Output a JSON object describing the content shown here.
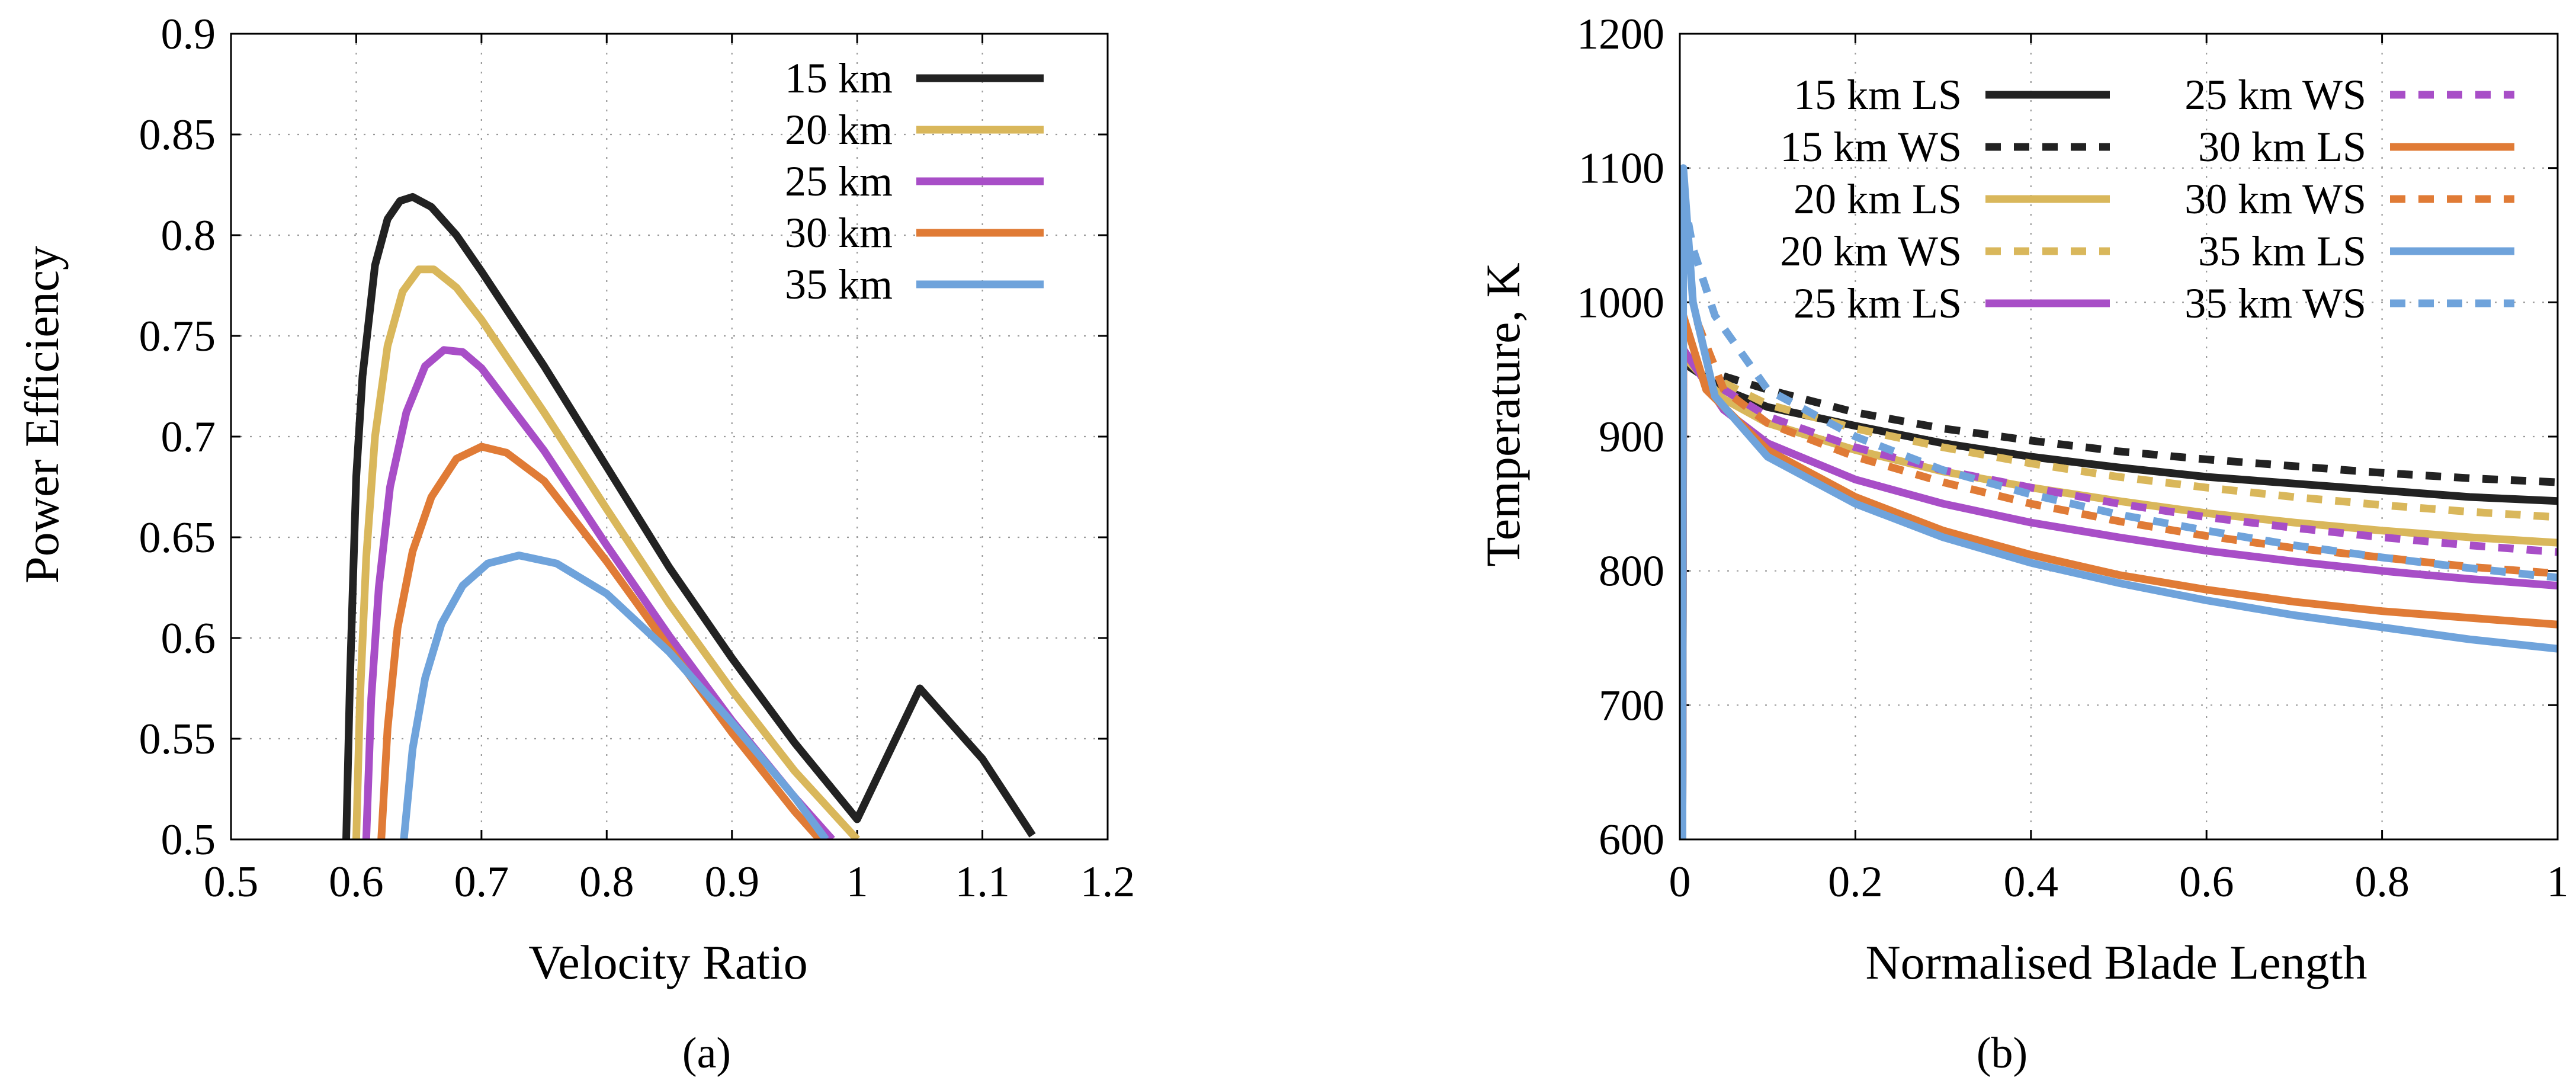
{
  "chart_data": [
    {
      "panel": "(a)",
      "type": "line",
      "xlabel": "Velocity Ratio",
      "ylabel": "Power Efficiency",
      "xlim": [
        0.5,
        1.2
      ],
      "ylim": [
        0.5,
        0.9
      ],
      "xticks": [
        "0.5",
        "0.6",
        "0.7",
        "0.8",
        "0.9",
        "1",
        "1.1",
        "1.2"
      ],
      "yticks": [
        "0.5",
        "0.55",
        "0.6",
        "0.65",
        "0.7",
        "0.75",
        "0.8",
        "0.85",
        "0.9"
      ],
      "legend_position": "top-right",
      "grid": true,
      "series": [
        {
          "name": "15 km",
          "color": "#222222",
          "dash": "solid",
          "points": [
            [
              0.592,
              0.5
            ],
            [
              0.595,
              0.58
            ],
            [
              0.6,
              0.68
            ],
            [
              0.605,
              0.73
            ],
            [
              0.615,
              0.785
            ],
            [
              0.625,
              0.808
            ],
            [
              0.635,
              0.817
            ],
            [
              0.645,
              0.819
            ],
            [
              0.66,
              0.814
            ],
            [
              0.68,
              0.8
            ],
            [
              0.7,
              0.782
            ],
            [
              0.75,
              0.735
            ],
            [
              0.8,
              0.685
            ],
            [
              0.85,
              0.635
            ],
            [
              0.9,
              0.59
            ],
            [
              0.95,
              0.548
            ],
            [
              1.0,
              0.51
            ],
            [
              1.05,
              0.575
            ],
            [
              1.1,
              0.54
            ],
            [
              1.14,
              0.502
            ]
          ]
        },
        {
          "name": "20 km",
          "color": "#D9B75B",
          "dash": "solid",
          "points": [
            [
              0.6,
              0.5
            ],
            [
              0.603,
              0.57
            ],
            [
              0.608,
              0.64
            ],
            [
              0.615,
              0.7
            ],
            [
              0.625,
              0.745
            ],
            [
              0.637,
              0.772
            ],
            [
              0.65,
              0.783
            ],
            [
              0.662,
              0.783
            ],
            [
              0.68,
              0.774
            ],
            [
              0.7,
              0.758
            ],
            [
              0.75,
              0.712
            ],
            [
              0.8,
              0.664
            ],
            [
              0.85,
              0.617
            ],
            [
              0.9,
              0.574
            ],
            [
              0.95,
              0.534
            ],
            [
              1.0,
              0.5
            ]
          ]
        },
        {
          "name": "25 km",
          "color": "#A84EC7",
          "dash": "solid",
          "points": [
            [
              0.608,
              0.5
            ],
            [
              0.612,
              0.57
            ],
            [
              0.618,
              0.625
            ],
            [
              0.627,
              0.675
            ],
            [
              0.64,
              0.712
            ],
            [
              0.655,
              0.735
            ],
            [
              0.67,
              0.743
            ],
            [
              0.685,
              0.742
            ],
            [
              0.7,
              0.734
            ],
            [
              0.75,
              0.693
            ],
            [
              0.8,
              0.646
            ],
            [
              0.85,
              0.601
            ],
            [
              0.9,
              0.559
            ],
            [
              0.95,
              0.521
            ],
            [
              0.98,
              0.5
            ]
          ]
        },
        {
          "name": "30 km",
          "color": "#E07B36",
          "dash": "solid",
          "points": [
            [
              0.62,
              0.5
            ],
            [
              0.625,
              0.555
            ],
            [
              0.633,
              0.605
            ],
            [
              0.645,
              0.643
            ],
            [
              0.66,
              0.67
            ],
            [
              0.68,
              0.689
            ],
            [
              0.7,
              0.695
            ],
            [
              0.72,
              0.692
            ],
            [
              0.75,
              0.678
            ],
            [
              0.8,
              0.638
            ],
            [
              0.85,
              0.595
            ],
            [
              0.9,
              0.553
            ],
            [
              0.95,
              0.514
            ],
            [
              0.97,
              0.5
            ]
          ]
        },
        {
          "name": "35 km",
          "color": "#6FA3DB",
          "dash": "solid",
          "points": [
            [
              0.638,
              0.5
            ],
            [
              0.645,
              0.545
            ],
            [
              0.655,
              0.58
            ],
            [
              0.668,
              0.607
            ],
            [
              0.685,
              0.626
            ],
            [
              0.705,
              0.637
            ],
            [
              0.73,
              0.641
            ],
            [
              0.76,
              0.637
            ],
            [
              0.8,
              0.622
            ],
            [
              0.85,
              0.593
            ],
            [
              0.9,
              0.558
            ],
            [
              0.95,
              0.521
            ],
            [
              0.975,
              0.5
            ]
          ]
        }
      ]
    },
    {
      "panel": "(b)",
      "type": "line",
      "xlabel": "Normalised Blade Length",
      "ylabel": "Temperature, K",
      "xlim": [
        0,
        1
      ],
      "ylim": [
        600,
        1200
      ],
      "xticks": [
        "0",
        "0.2",
        "0.4",
        "0.6",
        "0.8",
        "1"
      ],
      "yticks": [
        "600",
        "700",
        "800",
        "900",
        "1000",
        "1100",
        "1200"
      ],
      "legend_position": "top",
      "grid": true,
      "series": [
        {
          "name": "15 km LS",
          "color": "#222222",
          "dash": "solid",
          "points": [
            [
              0.003,
              600
            ],
            [
              0.004,
              955
            ],
            [
              0.05,
              935
            ],
            [
              0.1,
              922
            ],
            [
              0.2,
              908
            ],
            [
              0.3,
              895
            ],
            [
              0.4,
              885
            ],
            [
              0.5,
              877
            ],
            [
              0.6,
              870
            ],
            [
              0.7,
              865
            ],
            [
              0.8,
              860
            ],
            [
              0.9,
              855
            ],
            [
              1.0,
              852
            ]
          ]
        },
        {
          "name": "15 km WS",
          "color": "#222222",
          "dash": "dashed",
          "points": [
            [
              0.05,
              945
            ],
            [
              0.1,
              935
            ],
            [
              0.2,
              918
            ],
            [
              0.3,
              906
            ],
            [
              0.4,
              897
            ],
            [
              0.5,
              889
            ],
            [
              0.6,
              883
            ],
            [
              0.7,
              878
            ],
            [
              0.8,
              873
            ],
            [
              0.9,
              869
            ],
            [
              1.0,
              866
            ]
          ]
        },
        {
          "name": "20 km LS",
          "color": "#D9B75B",
          "dash": "solid",
          "points": [
            [
              0.003,
              600
            ],
            [
              0.004,
              960
            ],
            [
              0.05,
              928
            ],
            [
              0.1,
              910
            ],
            [
              0.2,
              890
            ],
            [
              0.3,
              874
            ],
            [
              0.4,
              862
            ],
            [
              0.5,
              852
            ],
            [
              0.6,
              843
            ],
            [
              0.7,
              836
            ],
            [
              0.8,
              830
            ],
            [
              0.9,
              825
            ],
            [
              1.0,
              821
            ]
          ]
        },
        {
          "name": "20 km WS",
          "color": "#D9B75B",
          "dash": "dashed",
          "points": [
            [
              0.05,
              940
            ],
            [
              0.1,
              924
            ],
            [
              0.2,
              906
            ],
            [
              0.3,
              892
            ],
            [
              0.4,
              880
            ],
            [
              0.5,
              870
            ],
            [
              0.6,
              862
            ],
            [
              0.7,
              855
            ],
            [
              0.8,
              849
            ],
            [
              0.9,
              844
            ],
            [
              1.0,
              840
            ]
          ]
        },
        {
          "name": "25 km LS",
          "color": "#A84EC7",
          "dash": "solid",
          "points": [
            [
              0.003,
              600
            ],
            [
              0.004,
              965
            ],
            [
              0.05,
              920
            ],
            [
              0.1,
              895
            ],
            [
              0.2,
              868
            ],
            [
              0.3,
              850
            ],
            [
              0.4,
              836
            ],
            [
              0.5,
              825
            ],
            [
              0.6,
              815
            ],
            [
              0.7,
              807
            ],
            [
              0.8,
              800
            ],
            [
              0.9,
              794
            ],
            [
              1.0,
              789
            ]
          ]
        },
        {
          "name": "25 km WS",
          "color": "#A84EC7",
          "dash": "dashed",
          "points": [
            [
              0.05,
              935
            ],
            [
              0.1,
              915
            ],
            [
              0.2,
              892
            ],
            [
              0.3,
              875
            ],
            [
              0.4,
              862
            ],
            [
              0.5,
              850
            ],
            [
              0.6,
              840
            ],
            [
              0.7,
              832
            ],
            [
              0.8,
              825
            ],
            [
              0.9,
              819
            ],
            [
              1.0,
              814
            ]
          ]
        },
        {
          "name": "30 km LS",
          "color": "#E07B36",
          "dash": "solid",
          "points": [
            [
              0.003,
              600
            ],
            [
              0.004,
              990
            ],
            [
              0.03,
              935
            ],
            [
              0.1,
              890
            ],
            [
              0.2,
              855
            ],
            [
              0.3,
              830
            ],
            [
              0.4,
              812
            ],
            [
              0.5,
              797
            ],
            [
              0.6,
              786
            ],
            [
              0.7,
              777
            ],
            [
              0.8,
              770
            ],
            [
              0.9,
              765
            ],
            [
              1.0,
              760
            ]
          ]
        },
        {
          "name": "30 km WS",
          "color": "#E07B36",
          "dash": "dashed",
          "points": [
            [
              0.02,
              985
            ],
            [
              0.05,
              935
            ],
            [
              0.1,
              910
            ],
            [
              0.2,
              885
            ],
            [
              0.3,
              866
            ],
            [
              0.4,
              850
            ],
            [
              0.5,
              837
            ],
            [
              0.6,
              826
            ],
            [
              0.7,
              817
            ],
            [
              0.8,
              810
            ],
            [
              0.9,
              803
            ],
            [
              1.0,
              798
            ]
          ]
        },
        {
          "name": "35 km LS",
          "color": "#6FA3DB",
          "dash": "solid",
          "points": [
            [
              0.003,
              600
            ],
            [
              0.004,
              1100
            ],
            [
              0.015,
              1000
            ],
            [
              0.04,
              930
            ],
            [
              0.1,
              885
            ],
            [
              0.2,
              850
            ],
            [
              0.3,
              825
            ],
            [
              0.4,
              806
            ],
            [
              0.5,
              791
            ],
            [
              0.6,
              778
            ],
            [
              0.7,
              767
            ],
            [
              0.8,
              758
            ],
            [
              0.9,
              749
            ],
            [
              1.0,
              742
            ]
          ]
        },
        {
          "name": "35 km WS",
          "color": "#6FA3DB",
          "dash": "dashed",
          "points": [
            [
              0.004,
              1080
            ],
            [
              0.015,
              1040
            ],
            [
              0.04,
              990
            ],
            [
              0.1,
              935
            ],
            [
              0.2,
              900
            ],
            [
              0.3,
              875
            ],
            [
              0.4,
              857
            ],
            [
              0.5,
              842
            ],
            [
              0.6,
              830
            ],
            [
              0.7,
              819
            ],
            [
              0.8,
              810
            ],
            [
              0.9,
              802
            ],
            [
              1.0,
              795
            ]
          ]
        }
      ]
    }
  ],
  "captions": {
    "a": "(a)",
    "b": "(b)"
  }
}
